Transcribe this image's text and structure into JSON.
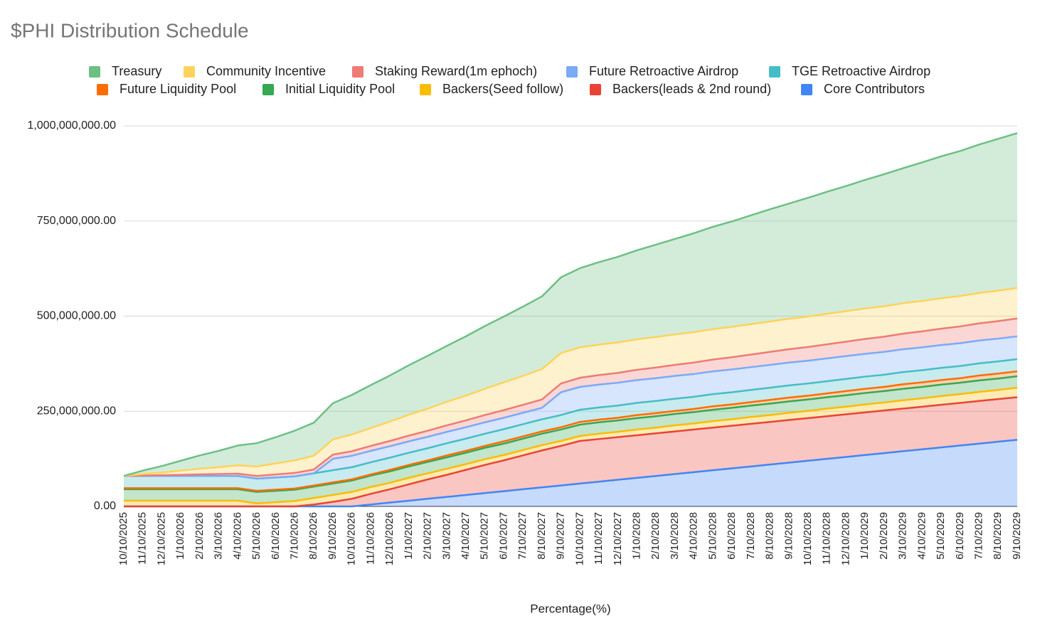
{
  "chart_data": {
    "type": "stacked_area",
    "title": "$PHI Distribution Schedule",
    "x_label": "Percentage(%)",
    "categories": [
      "10/10/2025",
      "11/10/2025",
      "12/10/2025",
      "1/10/2026",
      "2/10/2026",
      "3/10/2026",
      "4/10/2026",
      "5/10/2026",
      "6/10/2026",
      "7/10/2026",
      "8/10/2026",
      "9/10/2026",
      "10/10/2026",
      "11/10/2026",
      "12/10/2026",
      "1/10/2027",
      "2/10/2027",
      "3/10/2027",
      "4/10/2027",
      "5/10/2027",
      "6/10/2027",
      "7/10/2027",
      "8/10/2027",
      "9/10/2027",
      "10/10/2027",
      "11/10/2027",
      "12/10/2027",
      "1/10/2028",
      "2/10/2028",
      "3/10/2028",
      "4/10/2028",
      "5/10/2028",
      "6/10/2028",
      "7/10/2028",
      "8/10/2028",
      "9/10/2028",
      "10/10/2028",
      "11/10/2028",
      "12/10/2028",
      "1/10/2029",
      "2/10/2029",
      "3/10/2029",
      "4/10/2029",
      "5/10/2029",
      "6/10/2029",
      "7/10/2029",
      "8/10/2029",
      "9/10/2029"
    ],
    "ylim": [
      0,
      1000000000
    ],
    "yticks": [
      {
        "value": 0,
        "label": "0.00"
      },
      {
        "value": 250000000,
        "label": "250,000,000.00"
      },
      {
        "value": 500000000,
        "label": "500,000,000.00"
      },
      {
        "value": 750000000,
        "label": "750,000,000.00"
      },
      {
        "value": 1000000000,
        "label": "1,000,000,000.00"
      }
    ],
    "grid": true,
    "stacked": true,
    "legend": "top",
    "series": [
      {
        "name": "Treasury",
        "color": "#6cc083",
        "values": [
          0,
          9000000,
          17000000,
          26000000,
          35000000,
          43000000,
          52000000,
          61000000,
          69000000,
          78000000,
          87000000,
          95000000,
          104000000,
          113000000,
          121000000,
          130000000,
          139000000,
          147000000,
          156000000,
          165000000,
          173000000,
          182000000,
          191000000,
          199000000,
          208000000,
          217000000,
          225000000,
          234000000,
          243000000,
          251000000,
          260000000,
          269000000,
          277000000,
          286000000,
          295000000,
          303000000,
          312000000,
          321000000,
          329000000,
          338000000,
          347000000,
          355000000,
          364000000,
          373000000,
          381000000,
          390000000,
          399000000,
          407000000
        ]
      },
      {
        "name": "Community Incentive",
        "color": "#fdd35c",
        "values": [
          0,
          4000000,
          7000000,
          11000000,
          15000000,
          18000000,
          22000000,
          25000000,
          29000000,
          33000000,
          36000000,
          40000000,
          44000000,
          47000000,
          51000000,
          55000000,
          58000000,
          62000000,
          65000000,
          69000000,
          73000000,
          76000000,
          80000000,
          80000000,
          80000000,
          80000000,
          80000000,
          80000000,
          80000000,
          80000000,
          80000000,
          80000000,
          80000000,
          80000000,
          80000000,
          80000000,
          80000000,
          80000000,
          80000000,
          80000000,
          80000000,
          80000000,
          80000000,
          80000000,
          80000000,
          80000000,
          80000000,
          80000000
        ]
      },
      {
        "name": "Staking Reward(1m ephoch)",
        "color": "#ee7b74",
        "values": [
          0,
          1000000,
          2000000,
          3000000,
          4000000,
          5000000,
          6000000,
          7000000,
          8000000,
          9000000,
          10000000,
          11000000,
          12000000,
          13000000,
          14000000,
          15000000,
          16000000,
          17000000,
          18000000,
          19000000,
          20000000,
          21000000,
          22000000,
          23000000,
          24000000,
          25000000,
          26000000,
          27000000,
          28000000,
          29000000,
          30000000,
          31000000,
          32000000,
          33000000,
          34000000,
          35000000,
          36000000,
          37000000,
          38000000,
          39000000,
          40000000,
          41000000,
          42000000,
          43000000,
          44000000,
          45000000,
          46000000,
          47000000
        ]
      },
      {
        "name": "Future Retroactive Airdrop",
        "color": "#7baaf7",
        "values": [
          0,
          0,
          0,
          0,
          0,
          0,
          0,
          0,
          0,
          0,
          0,
          30000000,
          30000000,
          30000000,
          30000000,
          30000000,
          30000000,
          30000000,
          30000000,
          30000000,
          30000000,
          30000000,
          30000000,
          60000000,
          60000000,
          60000000,
          60000000,
          60000000,
          60000000,
          60000000,
          60000000,
          60000000,
          60000000,
          60000000,
          60000000,
          60000000,
          60000000,
          60000000,
          60000000,
          60000000,
          60000000,
          60000000,
          60000000,
          60000000,
          60000000,
          60000000,
          60000000,
          60000000
        ]
      },
      {
        "name": "TGE Retroactive Airdrop",
        "color": "#46bdc6",
        "values": [
          32000000,
          32000000,
          32000000,
          32000000,
          32000000,
          32000000,
          32000000,
          32000000,
          32000000,
          32000000,
          32000000,
          32000000,
          32000000,
          32000000,
          32000000,
          32000000,
          32000000,
          32000000,
          32000000,
          32000000,
          32000000,
          32000000,
          32000000,
          32000000,
          32000000,
          32000000,
          32000000,
          32000000,
          32000000,
          32000000,
          32000000,
          32000000,
          32000000,
          32000000,
          32000000,
          32000000,
          32000000,
          32000000,
          32000000,
          32000000,
          32000000,
          32000000,
          32000000,
          32000000,
          32000000,
          32000000,
          32000000,
          32000000
        ]
      },
      {
        "name": "Future Liquidity Pool",
        "color": "#ff6d01",
        "values": [
          3000000,
          3000000,
          3000000,
          3000000,
          3000000,
          3000000,
          3000000,
          3000000,
          3000000,
          3000000,
          3000000,
          3000000,
          3000000,
          3000000,
          4000000,
          4000000,
          4000000,
          5000000,
          5000000,
          5000000,
          6000000,
          6000000,
          6000000,
          6000000,
          7000000,
          7000000,
          7000000,
          8000000,
          8000000,
          8000000,
          8000000,
          9000000,
          9000000,
          9000000,
          10000000,
          10000000,
          10000000,
          10000000,
          11000000,
          11000000,
          11000000,
          12000000,
          12000000,
          12000000,
          12000000,
          13000000,
          13000000,
          13000000
        ]
      },
      {
        "name": "Initial Liquidity Pool",
        "color": "#34a853",
        "values": [
          30000000,
          30000000,
          30000000,
          30000000,
          30000000,
          30000000,
          30000000,
          30000000,
          30000000,
          30000000,
          30000000,
          30000000,
          30000000,
          30000000,
          30000000,
          30000000,
          30000000,
          30000000,
          30000000,
          30000000,
          30000000,
          30000000,
          30000000,
          30000000,
          30000000,
          30000000,
          30000000,
          30000000,
          30000000,
          30000000,
          30000000,
          30000000,
          30000000,
          30000000,
          30000000,
          30000000,
          30000000,
          30000000,
          30000000,
          30000000,
          30000000,
          30000000,
          30000000,
          30000000,
          30000000,
          30000000,
          30000000,
          30000000
        ]
      },
      {
        "name": "Backers(Seed follow)",
        "color": "#fbbc04",
        "values": [
          15000000,
          15000000,
          15000000,
          15000000,
          15000000,
          15000000,
          15000000,
          8000000,
          11000000,
          14000000,
          17000000,
          18000000,
          18000000,
          18000000,
          17000000,
          17000000,
          16000000,
          16000000,
          15000000,
          15000000,
          14000000,
          14000000,
          14000000,
          13000000,
          13000000,
          14000000,
          14000000,
          15000000,
          15000000,
          16000000,
          16000000,
          17000000,
          17000000,
          18000000,
          18000000,
          19000000,
          19000000,
          20000000,
          20000000,
          21000000,
          21000000,
          22000000,
          22000000,
          23000000,
          23000000,
          24000000,
          24000000,
          25000000
        ]
      },
      {
        "name": "Backers(leads & 2nd round)",
        "color": "#ea4335",
        "values": [
          0,
          0,
          0,
          0,
          0,
          0,
          0,
          0,
          0,
          0,
          5000000,
          12000000,
          20000000,
          28000000,
          35000000,
          43000000,
          51000000,
          58000000,
          66000000,
          74000000,
          81000000,
          89000000,
          97000000,
          104000000,
          112000000,
          112000000,
          112000000,
          112000000,
          112000000,
          112000000,
          112000000,
          112000000,
          112000000,
          112000000,
          112000000,
          112000000,
          112000000,
          112000000,
          112000000,
          112000000,
          112000000,
          112000000,
          112000000,
          112000000,
          112000000,
          112000000,
          112000000,
          112000000
        ]
      },
      {
        "name": "Core Contributors",
        "color": "#4285f4",
        "values": [
          0,
          0,
          0,
          0,
          0,
          0,
          0,
          0,
          0,
          0,
          0,
          0,
          0,
          5000000,
          10000000,
          15000000,
          20000000,
          25000000,
          30000000,
          35000000,
          40000000,
          45000000,
          50000000,
          55000000,
          60000000,
          65000000,
          70000000,
          75000000,
          80000000,
          85000000,
          90000000,
          95000000,
          100000000,
          105000000,
          110000000,
          115000000,
          120000000,
          125000000,
          130000000,
          135000000,
          140000000,
          145000000,
          150000000,
          155000000,
          160000000,
          165000000,
          170000000,
          175000000
        ]
      }
    ]
  }
}
